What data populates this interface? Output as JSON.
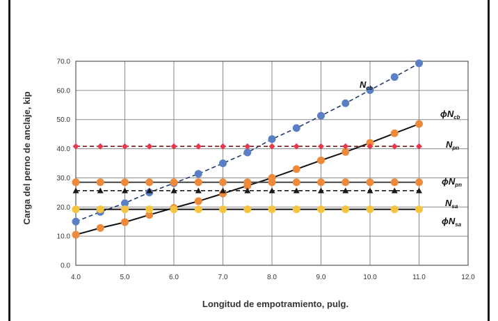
{
  "chart_data": {
    "type": "line",
    "title": "",
    "xlabel": "Longitud de empotramiento, pulg.",
    "ylabel": "Carga del perno de anclaje, kip",
    "xlim": [
      4.0,
      12.0
    ],
    "ylim": [
      0.0,
      70.0
    ],
    "xticks": [
      "4.0",
      "5.0",
      "6.0",
      "7.0",
      "8.0",
      "9.0",
      "10.0",
      "11.0",
      "12.0"
    ],
    "yticks": [
      "0.0",
      "10.0",
      "20.0",
      "30.0",
      "40.0",
      "50.0",
      "60.0",
      "70.0"
    ],
    "grid": true,
    "x": [
      4.0,
      4.5,
      5.0,
      5.5,
      6.0,
      6.5,
      7.0,
      7.5,
      8.0,
      8.5,
      9.0,
      9.5,
      10.0,
      10.5,
      11.0
    ],
    "series": [
      {
        "name": "Ncb",
        "main": "N",
        "phi": false,
        "sub": "cb",
        "color": "#5b7fc4",
        "line_color": "#1f3a6b",
        "dash": true,
        "marker": "circle",
        "values": [
          15.0,
          18.3,
          21.3,
          25.0,
          28.2,
          31.4,
          35.0,
          38.7,
          43.3,
          47.1,
          51.3,
          55.6,
          60.1,
          64.6,
          69.3
        ]
      },
      {
        "name": "ϕNcb",
        "main": "N",
        "phi": true,
        "sub": "cb",
        "color": "#ee8a3c",
        "line_color": "#111111",
        "dash": false,
        "marker": "circle",
        "values": [
          10.5,
          12.8,
          14.8,
          17.3,
          19.7,
          22.0,
          24.6,
          27.3,
          30.0,
          33.0,
          36.0,
          38.9,
          42.0,
          45.3,
          48.5
        ]
      },
      {
        "name": "Npn",
        "main": "N",
        "phi": false,
        "sub": "pn",
        "color": "#e8394a",
        "line_color": "#7a1a1a",
        "dash": true,
        "marker": "diamond",
        "values": [
          40.8,
          40.8,
          40.8,
          40.8,
          40.8,
          40.8,
          40.8,
          40.8,
          40.8,
          40.8,
          40.8,
          40.8,
          40.8,
          40.8,
          40.8
        ]
      },
      {
        "name": "ϕNpn",
        "main": "N",
        "phi": true,
        "sub": "pn",
        "color": "#ee8a3c",
        "line_color": "#444444",
        "dash": false,
        "marker": "circle",
        "values": [
          28.5,
          28.5,
          28.5,
          28.5,
          28.5,
          28.5,
          28.5,
          28.5,
          28.5,
          28.5,
          28.5,
          28.5,
          28.5,
          28.5,
          28.5
        ]
      },
      {
        "name": "Nsa",
        "main": "N",
        "phi": false,
        "sub": "sa",
        "color": "#1a1a1a",
        "line_color": "#1a1a1a",
        "dash": true,
        "marker": "triangle",
        "values": [
          25.6,
          25.6,
          25.6,
          25.6,
          25.6,
          25.6,
          25.6,
          25.6,
          25.6,
          25.6,
          25.6,
          25.6,
          25.6,
          25.6,
          25.6
        ]
      },
      {
        "name": "ϕNsa",
        "main": "N",
        "phi": true,
        "sub": "sa",
        "color": "#f5c542",
        "line_color": "#111111",
        "dash": false,
        "marker": "circle",
        "values": [
          19.2,
          19.2,
          19.2,
          19.2,
          19.2,
          19.2,
          19.2,
          19.2,
          19.2,
          19.2,
          19.2,
          19.2,
          19.2,
          19.2,
          19.2
        ]
      }
    ]
  }
}
